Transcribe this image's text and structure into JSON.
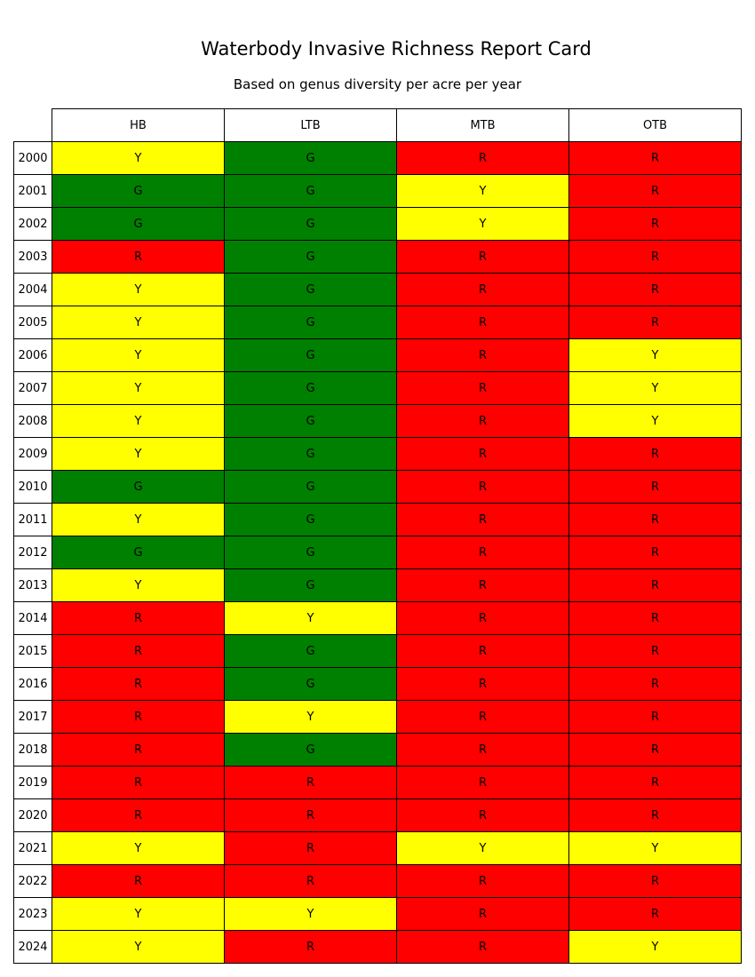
{
  "chart_data": {
    "type": "table",
    "title": "Waterbody Invasive Richness Report Card",
    "subtitle": "Based on genus diversity per acre per year",
    "columns": [
      "HB",
      "LTB",
      "MTB",
      "OTB"
    ],
    "colors": {
      "G": "#008000",
      "Y": "#ffff00",
      "R": "#ff0000"
    },
    "rows": [
      {
        "year": "2000",
        "values": [
          "Y",
          "G",
          "R",
          "R"
        ]
      },
      {
        "year": "2001",
        "values": [
          "G",
          "G",
          "Y",
          "R"
        ]
      },
      {
        "year": "2002",
        "values": [
          "G",
          "G",
          "Y",
          "R"
        ]
      },
      {
        "year": "2003",
        "values": [
          "R",
          "G",
          "R",
          "R"
        ]
      },
      {
        "year": "2004",
        "values": [
          "Y",
          "G",
          "R",
          "R"
        ]
      },
      {
        "year": "2005",
        "values": [
          "Y",
          "G",
          "R",
          "R"
        ]
      },
      {
        "year": "2006",
        "values": [
          "Y",
          "G",
          "R",
          "Y"
        ]
      },
      {
        "year": "2007",
        "values": [
          "Y",
          "G",
          "R",
          "Y"
        ]
      },
      {
        "year": "2008",
        "values": [
          "Y",
          "G",
          "R",
          "Y"
        ]
      },
      {
        "year": "2009",
        "values": [
          "Y",
          "G",
          "R",
          "R"
        ]
      },
      {
        "year": "2010",
        "values": [
          "G",
          "G",
          "R",
          "R"
        ]
      },
      {
        "year": "2011",
        "values": [
          "Y",
          "G",
          "R",
          "R"
        ]
      },
      {
        "year": "2012",
        "values": [
          "G",
          "G",
          "R",
          "R"
        ]
      },
      {
        "year": "2013",
        "values": [
          "Y",
          "G",
          "R",
          "R"
        ]
      },
      {
        "year": "2014",
        "values": [
          "R",
          "Y",
          "R",
          "R"
        ]
      },
      {
        "year": "2015",
        "values": [
          "R",
          "G",
          "R",
          "R"
        ]
      },
      {
        "year": "2016",
        "values": [
          "R",
          "G",
          "R",
          "R"
        ]
      },
      {
        "year": "2017",
        "values": [
          "R",
          "Y",
          "R",
          "R"
        ]
      },
      {
        "year": "2018",
        "values": [
          "R",
          "G",
          "R",
          "R"
        ]
      },
      {
        "year": "2019",
        "values": [
          "R",
          "R",
          "R",
          "R"
        ]
      },
      {
        "year": "2020",
        "values": [
          "R",
          "R",
          "R",
          "R"
        ]
      },
      {
        "year": "2021",
        "values": [
          "Y",
          "R",
          "Y",
          "Y"
        ]
      },
      {
        "year": "2022",
        "values": [
          "R",
          "R",
          "R",
          "R"
        ]
      },
      {
        "year": "2023",
        "values": [
          "Y",
          "Y",
          "R",
          "R"
        ]
      },
      {
        "year": "2024",
        "values": [
          "Y",
          "R",
          "R",
          "Y"
        ]
      }
    ]
  }
}
